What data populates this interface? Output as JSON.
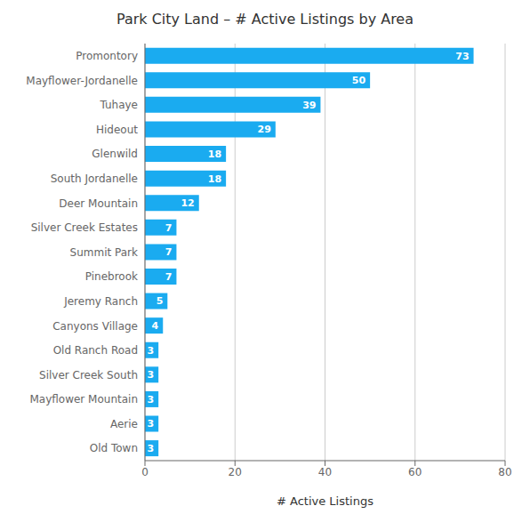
{
  "chart_data": {
    "type": "bar",
    "orientation": "horizontal",
    "title": "Park City Land – # Active Listings by Area",
    "xlabel": "# Active Listings",
    "categories": [
      "Old Town",
      "Aerie",
      "Mayflower Mountain",
      "Silver Creek South",
      "Old Ranch Road",
      "Canyons Village",
      "Jeremy Ranch",
      "Pinebrook",
      "Summit Park",
      "Silver Creek Estates",
      "Deer Mountain",
      "South Jordanelle",
      "Glenwild",
      "Hideout",
      "Tuhaye",
      "Mayflower-Jordanelle",
      "Promontory"
    ],
    "values": [
      3,
      3,
      3,
      3,
      3,
      4,
      5,
      7,
      7,
      7,
      12,
      18,
      18,
      29,
      39,
      50,
      73
    ],
    "color": "#1AABF0",
    "xlim": [
      0,
      80
    ],
    "xticks": [
      0,
      20,
      40,
      60,
      80
    ],
    "grid": true,
    "data_labels": true
  }
}
